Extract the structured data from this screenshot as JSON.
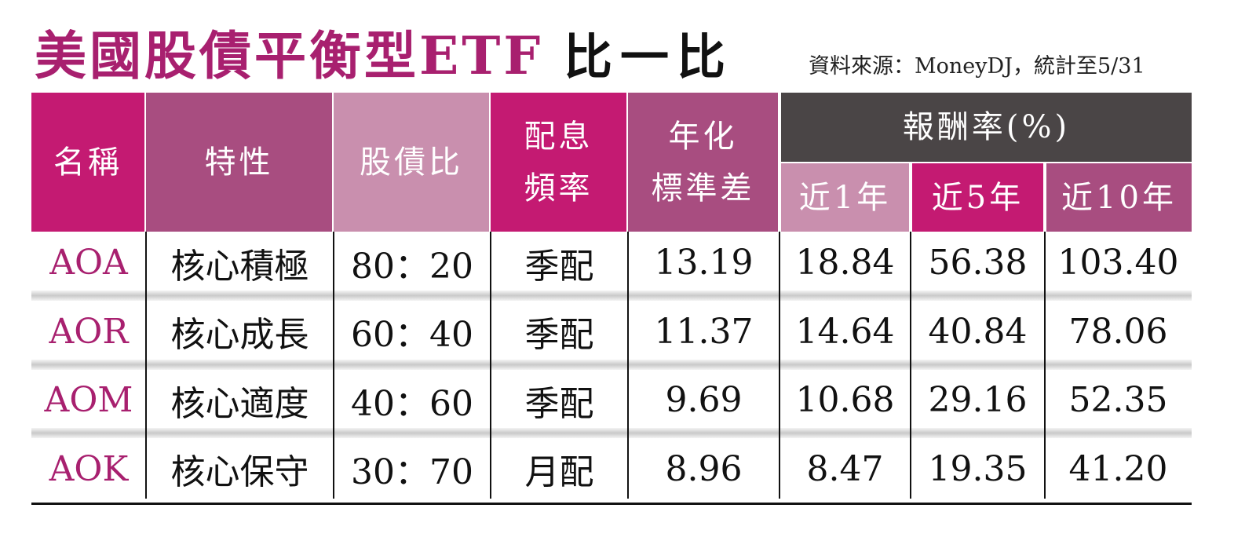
{
  "header": {
    "title": "美國股債平衡型ETF",
    "title_suffix": "比一比",
    "source": "資料來源：MoneyDJ，統計至5/31"
  },
  "table": {
    "columns": [
      {
        "lines": [
          "名稱"
        ]
      },
      {
        "lines": [
          "特性"
        ]
      },
      {
        "lines": [
          "股債比"
        ]
      },
      {
        "lines": [
          "配息",
          "頻率"
        ]
      },
      {
        "lines": [
          "年化",
          "標準差"
        ]
      }
    ],
    "group": {
      "label": "報酬率(%)",
      "columns": [
        "近1年",
        "近5年",
        "近10年"
      ]
    },
    "rows": [
      [
        "AOA",
        "核心積極",
        "80：20",
        "季配",
        "13.19",
        "18.84",
        "56.38",
        "103.40"
      ],
      [
        "AOR",
        "核心成長",
        "60：40",
        "季配",
        "11.37",
        "14.64",
        "40.84",
        "78.06"
      ],
      [
        "AOM",
        "核心適度",
        "40：60",
        "季配",
        "9.69",
        "10.68",
        "29.16",
        "52.35"
      ],
      [
        "AOK",
        "核心保守",
        "30：70",
        "月配",
        "8.96",
        "8.47",
        "19.35",
        "41.20"
      ]
    ]
  }
}
